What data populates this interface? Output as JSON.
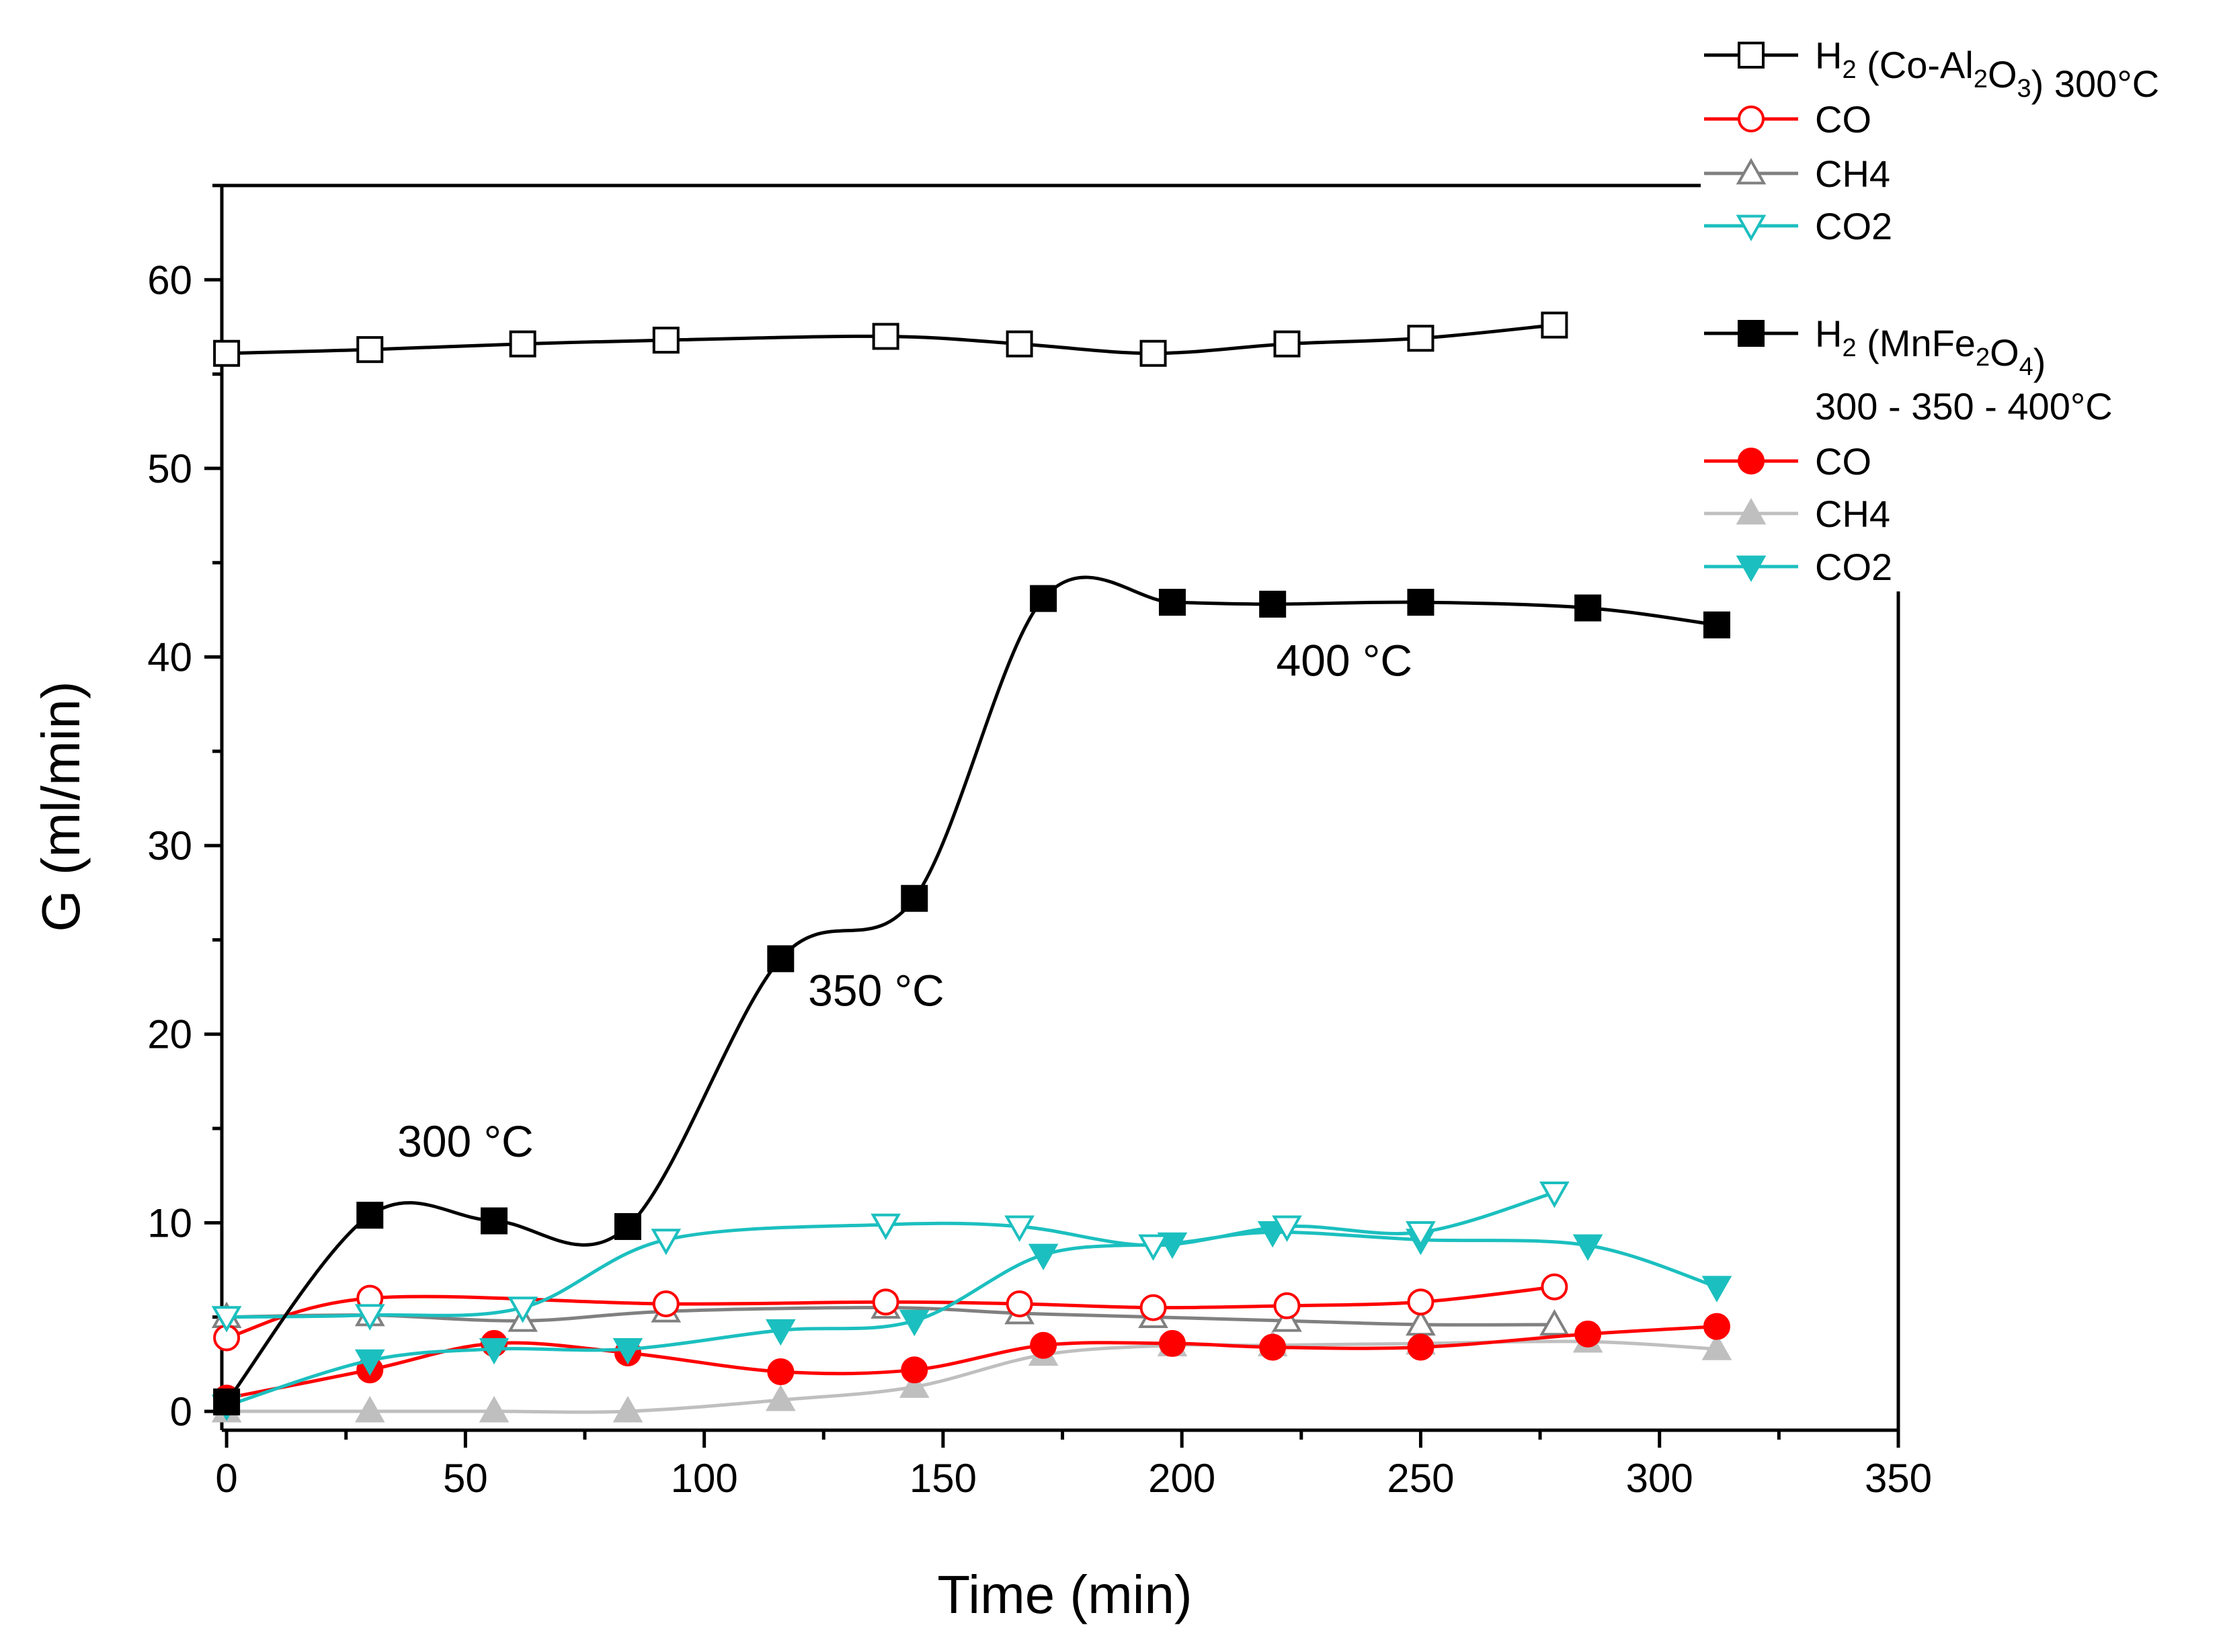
{
  "chart_data": {
    "type": "line",
    "xlabel": "Time (min)",
    "ylabel": "G (ml/min)",
    "xlim": [
      -1,
      350
    ],
    "ylim": [
      -1,
      65
    ],
    "xticks": [
      "0",
      "50",
      "100",
      "150",
      "200",
      "250",
      "300",
      "350"
    ],
    "yticks": [
      "0",
      "10",
      "20",
      "30",
      "40",
      "50",
      "60"
    ],
    "annotations": [
      {
        "text": "300 °C",
        "x": 50,
        "y": 13.5
      },
      {
        "text": "350 °C",
        "x": 136,
        "y": 21.5
      },
      {
        "text": "400 °C",
        "x": 234,
        "y": 39
      }
    ],
    "legend_position": "top-right",
    "legend": [
      {
        "series": 0,
        "pre": "H",
        "sub1": "2",
        "mid": " (Co-Al",
        "sub2": "2",
        "mid2": "O",
        "sub3": "3",
        "post": ") 300°C"
      },
      {
        "series": 1,
        "pre": "CO"
      },
      {
        "series": 2,
        "pre": "CH4"
      },
      {
        "series": 3,
        "pre": "CO2"
      },
      {
        "series": 4,
        "pre": "H",
        "sub1": "2",
        "mid": " (MnFe",
        "sub2": "2",
        "mid2": "O",
        "sub3": "4",
        "post": ")"
      },
      {
        "series": -1,
        "pre": "300 - 350 - 400°C"
      },
      {
        "series": 5,
        "pre": "CO"
      },
      {
        "series": 6,
        "pre": "CH4"
      },
      {
        "series": 7,
        "pre": "CO2"
      }
    ],
    "series": [
      {
        "name": "H2 (Co-Al2O3) 300°C",
        "color": "#000000",
        "marker": "square",
        "filled": false,
        "x": [
          0,
          30,
          62,
          92,
          138,
          166,
          194,
          222,
          250,
          278
        ],
        "y": [
          56.1,
          56.3,
          56.6,
          56.8,
          57.0,
          56.6,
          56.1,
          56.6,
          56.9,
          57.6
        ]
      },
      {
        "name": "CO",
        "color": "#ff0000",
        "marker": "circle",
        "filled": false,
        "x": [
          0,
          30,
          92,
          138,
          166,
          194,
          222,
          250,
          278
        ],
        "y": [
          3.9,
          6.0,
          5.7,
          5.8,
          5.7,
          5.5,
          5.6,
          5.8,
          6.6
        ]
      },
      {
        "name": "CH4",
        "color": "#808080",
        "marker": "triangle-up",
        "filled": false,
        "x": [
          0,
          30,
          62,
          92,
          138,
          166,
          194,
          222,
          250,
          278
        ],
        "y": [
          5.0,
          5.1,
          4.8,
          5.3,
          5.5,
          5.2,
          5.0,
          4.8,
          4.6,
          4.6
        ]
      },
      {
        "name": "CO2",
        "color": "#1cbfbf",
        "marker": "triangle-down",
        "filled": false,
        "x": [
          0,
          30,
          62,
          92,
          138,
          166,
          194,
          222,
          250,
          278
        ],
        "y": [
          5.0,
          5.1,
          5.5,
          9.1,
          9.9,
          9.8,
          8.8,
          9.8,
          9.5,
          11.6
        ]
      },
      {
        "name": "H2 (MnFe2O4) 300 - 350 - 400°C",
        "color": "#000000",
        "marker": "square",
        "filled": true,
        "x": [
          0,
          30,
          56,
          84,
          116,
          144,
          171,
          198,
          219,
          250,
          285,
          312
        ],
        "y": [
          0.5,
          10.4,
          10.1,
          9.8,
          24.0,
          27.2,
          43.1,
          42.9,
          42.8,
          42.9,
          42.6,
          41.7
        ]
      },
      {
        "name": "CO",
        "color": "#ff0000",
        "marker": "circle",
        "filled": true,
        "x": [
          0,
          30,
          56,
          84,
          116,
          144,
          171,
          198,
          219,
          250,
          285,
          312
        ],
        "y": [
          0.7,
          2.2,
          3.6,
          3.1,
          2.1,
          2.2,
          3.5,
          3.6,
          3.4,
          3.4,
          4.1,
          4.5
        ]
      },
      {
        "name": "CH4",
        "color": "#bfbfbf",
        "marker": "triangle-up",
        "filled": true,
        "x": [
          0,
          30,
          56,
          84,
          116,
          144,
          171,
          198,
          219,
          250,
          285,
          312
        ],
        "y": [
          0.0,
          0.0,
          0.0,
          0.0,
          0.6,
          1.3,
          3.0,
          3.5,
          3.5,
          3.6,
          3.7,
          3.3
        ]
      },
      {
        "name": "CO2",
        "color": "#1cbfbf",
        "marker": "triangle-down",
        "filled": true,
        "x": [
          0,
          30,
          56,
          84,
          116,
          144,
          171,
          198,
          219,
          250,
          285,
          312
        ],
        "y": [
          0.3,
          2.7,
          3.3,
          3.3,
          4.3,
          4.8,
          8.3,
          8.9,
          9.5,
          9.1,
          8.8,
          6.6
        ]
      }
    ]
  }
}
